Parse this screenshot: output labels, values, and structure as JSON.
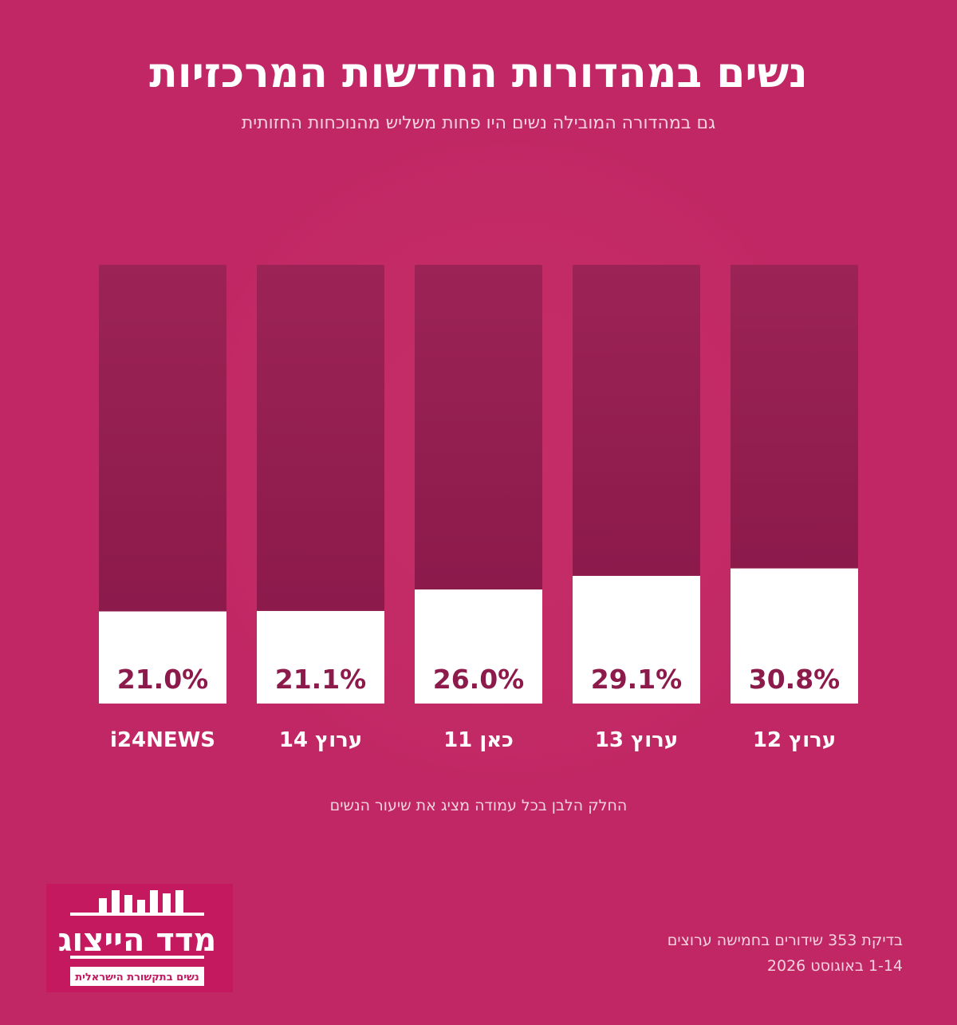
{
  "title": "נשים במהדורות החדשות המרכזיות",
  "subtitle": "גם במהדורה המובילה נשים היו פחות משליש מהנוכחות החזותית",
  "caption": "החלק הלבן בכל עמודה מציג את שיעור הנשים",
  "source": {
    "line1": "בדיקת 353 שידורים בחמישה ערוצים",
    "line2": "1-14 באוגוסט 2026"
  },
  "logo": {
    "name": "מדד הייצוג",
    "tagline": "נשים בתקשורת הישראלית"
  },
  "colors": {
    "background": "#c02764",
    "bar_dark_top": "#9c2356",
    "bar_dark_bottom": "#8c1a4b",
    "bar_women": "#ffffff",
    "value_text": "#8c1a4b"
  },
  "chart_data": {
    "type": "bar",
    "stacked": true,
    "unit": "%",
    "ylim": [
      0,
      100
    ],
    "categories": [
      "ערוץ 12",
      "ערוץ 13",
      "כאן 11",
      "ערוץ 14",
      "i24NEWS"
    ],
    "values": [
      30.8,
      29.1,
      26.0,
      21.1,
      21.0
    ],
    "value_labels": [
      "30.8%",
      "29.1%",
      "26.0%",
      "21.1%",
      "21.0%"
    ],
    "series": [
      {
        "values": [
          30.8,
          29.1,
          26.0,
          21.1,
          21.0
        ],
        "color": "#ffffff"
      },
      {
        "values": [
          69.2,
          70.9,
          74.0,
          78.9,
          79.0
        ],
        "color": "#8c1a4b"
      }
    ]
  }
}
